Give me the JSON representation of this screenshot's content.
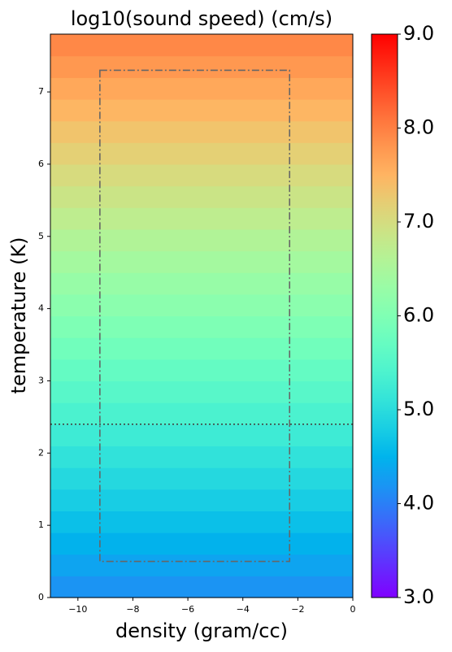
{
  "chart_data": {
    "type": "heatmap",
    "title": "log10(sound speed) (cm/s)",
    "xlabel": "density (gram/cc)",
    "ylabel": "temperature (K)",
    "xlim": [
      -11,
      0
    ],
    "ylim": [
      0,
      7.8
    ],
    "xticks": [
      {
        "value": -10,
        "label": "−10"
      },
      {
        "value": -8,
        "label": "−8"
      },
      {
        "value": -6,
        "label": "−6"
      },
      {
        "value": -4,
        "label": "−4"
      },
      {
        "value": -2,
        "label": "−2"
      },
      0
    ],
    "yticks": [
      0,
      1,
      2,
      3,
      4,
      5,
      6,
      7
    ],
    "ybins": [
      0,
      0.3,
      0.6,
      0.9,
      1.2,
      1.5,
      1.8,
      2.1,
      2.4,
      2.7,
      3.0,
      3.3,
      3.6,
      3.9,
      4.2,
      4.5,
      4.8,
      5.1,
      5.4,
      5.7,
      6.0,
      6.3,
      6.6,
      6.9,
      7.2,
      7.5,
      7.8
    ],
    "values": [
      4.18,
      4.33,
      4.48,
      4.63,
      4.78,
      4.93,
      5.08,
      5.23,
      5.38,
      5.53,
      5.68,
      5.83,
      5.98,
      6.13,
      6.28,
      6.43,
      6.58,
      6.73,
      6.88,
      7.03,
      7.18,
      7.33,
      7.48,
      7.63,
      7.78,
      7.93
    ],
    "colormap": "rainbow",
    "clim": [
      3,
      9
    ],
    "cticks": [
      {
        "value": 3,
        "label": "3.0"
      },
      {
        "value": 4,
        "label": "4.0"
      },
      {
        "value": 5,
        "label": "5.0"
      },
      {
        "value": 6,
        "label": "6.0"
      },
      {
        "value": 7,
        "label": "7.0"
      },
      {
        "value": 8,
        "label": "8.0"
      },
      {
        "value": 9,
        "label": "9.0"
      }
    ],
    "box": {
      "x": [
        -9.2,
        -2.3
      ],
      "y": [
        0.5,
        7.3
      ],
      "color": "#666666"
    },
    "hline": {
      "y": 2.4,
      "color": "#444444"
    }
  }
}
